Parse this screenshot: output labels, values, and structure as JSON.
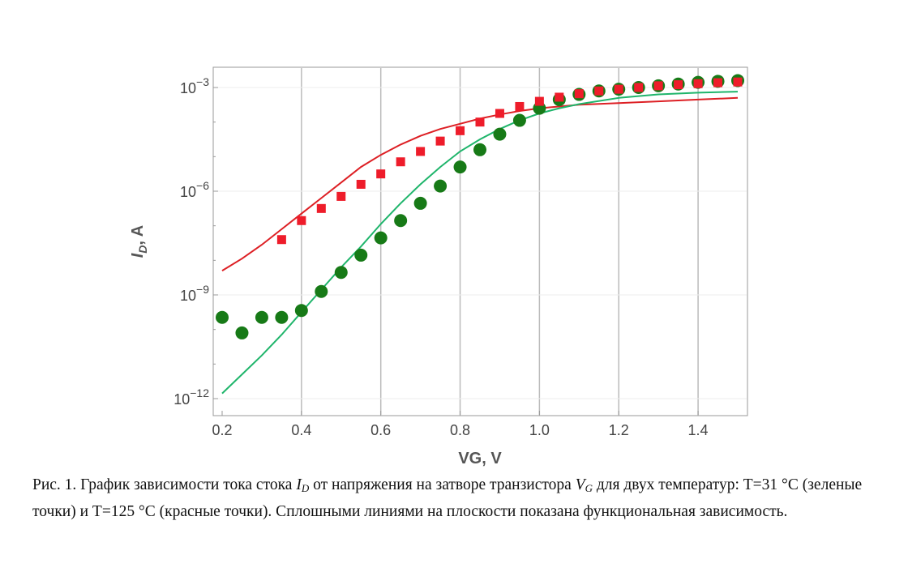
{
  "caption": {
    "part1": "Рис. 1. График зависимости тока стока ",
    "id_letter": "I",
    "id_sub": "D",
    "part2": " от напряжения на затворе транзистора ",
    "vg_letter": "V",
    "vg_sub": "G",
    "part3": " для двух температур: T=31 °C (зеленые точки) и T=125 °C (красные точки). Сплошными линиями на плоскости показана функциональная зависимость."
  },
  "chart_data": {
    "type": "scatter",
    "xlabel": "VG, V",
    "ylabel": {
      "main": "I",
      "sub": "D",
      "rest": ", A"
    },
    "xlim": [
      0.2,
      1.5
    ],
    "ylim_log10": [
      -12,
      -3
    ],
    "yscale": "log",
    "x_ticks": [
      "0.2",
      "0.4",
      "0.6",
      "0.8",
      "1.0",
      "1.2",
      "1.4"
    ],
    "y_ticks": [
      {
        "exp": -3,
        "base": "10",
        "sup": "−3"
      },
      {
        "exp": -6,
        "base": "10",
        "sup": "−6"
      },
      {
        "exp": -9,
        "base": "10",
        "sup": "−9"
      },
      {
        "exp": -12,
        "base": "10",
        "sup": "−12"
      }
    ],
    "grid": "vertical",
    "colors": {
      "green": "#177a17",
      "red": "#ee1c2a",
      "green_line": "#1fb56b",
      "red_line": "#dd1f24",
      "grid": "#bbbbbb",
      "frame": "#999999"
    },
    "series": [
      {
        "marker": "circle",
        "color": "green",
        "x": [
          0.2,
          0.25,
          0.3,
          0.35,
          0.4,
          0.45,
          0.5,
          0.55,
          0.6,
          0.65,
          0.7,
          0.75,
          0.8,
          0.85,
          0.9,
          0.95,
          1.0,
          1.05,
          1.1,
          1.15,
          1.2,
          1.25,
          1.3,
          1.35,
          1.4,
          1.45,
          1.5
        ],
        "y_log10": [
          -9.65,
          -10.1,
          -9.65,
          -9.65,
          -9.45,
          -8.9,
          -8.35,
          -7.85,
          -7.35,
          -6.85,
          -6.35,
          -5.85,
          -5.3,
          -4.8,
          -4.35,
          -3.95,
          -3.6,
          -3.35,
          -3.2,
          -3.1,
          -3.05,
          -3.0,
          -2.95,
          -2.9,
          -2.85,
          -2.82,
          -2.8
        ]
      },
      {
        "marker": "square",
        "color": "red",
        "x": [
          0.35,
          0.4,
          0.45,
          0.5,
          0.55,
          0.6,
          0.65,
          0.7,
          0.75,
          0.8,
          0.85,
          0.9,
          0.95,
          1.0,
          1.05,
          1.1,
          1.15,
          1.2,
          1.25,
          1.3,
          1.35,
          1.4,
          1.45,
          1.5
        ],
        "y_log10": [
          -7.4,
          -6.85,
          -6.5,
          -6.15,
          -5.8,
          -5.5,
          -5.15,
          -4.85,
          -4.55,
          -4.25,
          -4.0,
          -3.75,
          -3.55,
          -3.4,
          -3.28,
          -3.18,
          -3.1,
          -3.05,
          -3.0,
          -2.95,
          -2.92,
          -2.89,
          -2.86,
          -2.84
        ]
      },
      {
        "marker": "line",
        "color": "red_line",
        "x": [
          0.2,
          0.25,
          0.3,
          0.35,
          0.4,
          0.45,
          0.5,
          0.55,
          0.6,
          0.65,
          0.7,
          0.75,
          0.8,
          0.85,
          0.9,
          0.95,
          1.0,
          1.1,
          1.2,
          1.3,
          1.4,
          1.5
        ],
        "y_log10": [
          -8.3,
          -7.95,
          -7.55,
          -7.1,
          -6.65,
          -6.2,
          -5.75,
          -5.3,
          -4.95,
          -4.65,
          -4.4,
          -4.2,
          -4.05,
          -3.9,
          -3.78,
          -3.68,
          -3.6,
          -3.5,
          -3.45,
          -3.4,
          -3.35,
          -3.3
        ]
      },
      {
        "marker": "line",
        "color": "green_line",
        "x": [
          0.2,
          0.25,
          0.3,
          0.35,
          0.4,
          0.45,
          0.5,
          0.55,
          0.6,
          0.65,
          0.7,
          0.75,
          0.8,
          0.85,
          0.9,
          0.95,
          1.0,
          1.05,
          1.1,
          1.2,
          1.3,
          1.4,
          1.5
        ],
        "y_log10": [
          -11.85,
          -11.3,
          -10.75,
          -10.15,
          -9.5,
          -8.85,
          -8.2,
          -7.6,
          -6.95,
          -6.35,
          -5.8,
          -5.3,
          -4.85,
          -4.5,
          -4.2,
          -3.95,
          -3.75,
          -3.6,
          -3.48,
          -3.3,
          -3.2,
          -3.15,
          -3.12
        ]
      }
    ]
  }
}
